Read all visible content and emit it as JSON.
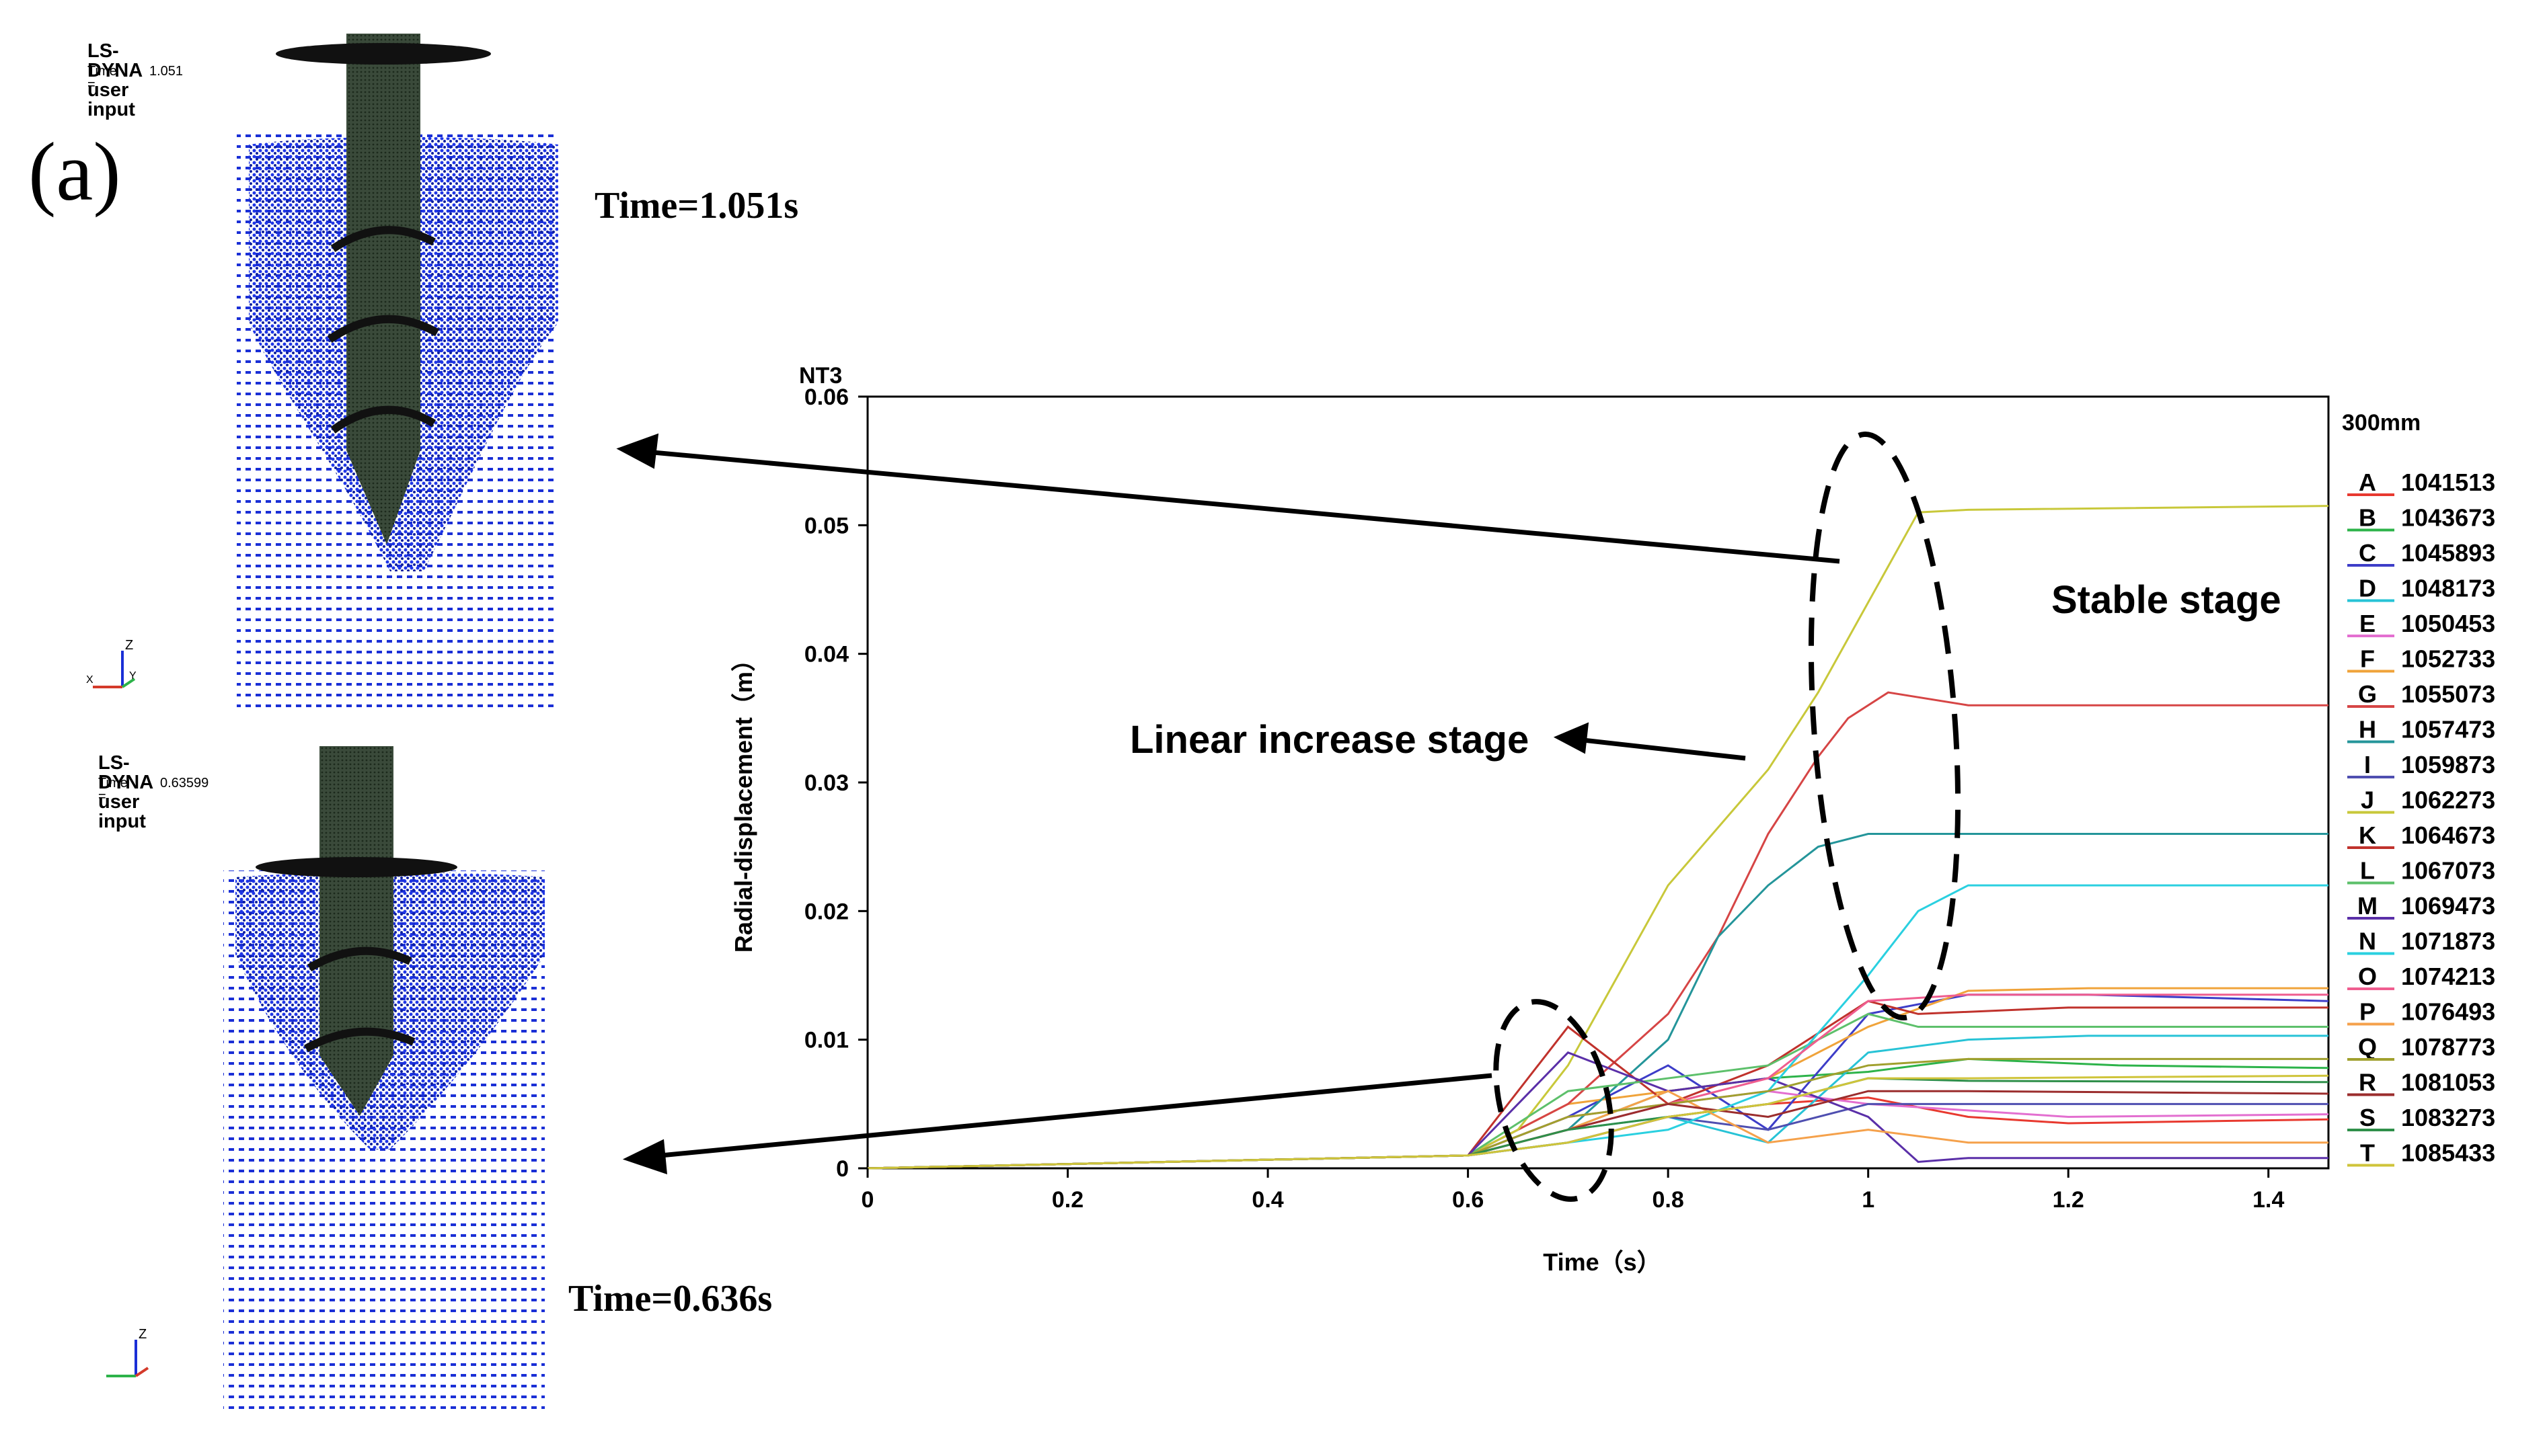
{
  "panel_label": "(a)",
  "simulations": [
    {
      "title": "LS-DYNA user input",
      "time_label": "Time =",
      "time_value": "1.051",
      "caption": "Time=1.051s"
    },
    {
      "title": "LS-DYNA user input",
      "time_label": "Time =",
      "time_value": "0.63599",
      "caption": "Time=0.636s"
    }
  ],
  "annotations": {
    "stable": "Stable stage",
    "linear": "Linear increase stage"
  },
  "colors": {
    "particles": "#1a2fd6",
    "pile": "#2f3f30",
    "arrow": "#000000"
  },
  "chart_data": {
    "type": "line",
    "title": "NT3",
    "subtitle": "300mm",
    "xlabel": "Time（s）",
    "ylabel": "Radial-displacement（m）",
    "xlim": [
      0,
      1.46
    ],
    "ylim": [
      0,
      0.06
    ],
    "xticks": [
      "0",
      "0.2",
      "0.4",
      "0.6",
      "0.8",
      "1",
      "1.2",
      "1.4"
    ],
    "yticks": [
      "0",
      "0.01",
      "0.02",
      "0.03",
      "0.04",
      "0.05",
      "0.06"
    ],
    "legend_position": "right",
    "series": [
      {
        "name": "A",
        "id": "1041513",
        "color": "#e8392f",
        "x": [
          0,
          0.6,
          0.7,
          0.8,
          0.9,
          1.0,
          1.1,
          1.2,
          1.46
        ],
        "y": [
          0,
          0.001,
          0.002,
          0.004,
          0.005,
          0.0055,
          0.004,
          0.0035,
          0.0038
        ]
      },
      {
        "name": "B",
        "id": "1043673",
        "color": "#2db34a",
        "x": [
          0,
          0.6,
          0.7,
          0.8,
          0.9,
          1.0,
          1.1,
          1.25,
          1.46
        ],
        "y": [
          0,
          0.001,
          0.003,
          0.006,
          0.007,
          0.0075,
          0.0085,
          0.008,
          0.0078
        ]
      },
      {
        "name": "C",
        "id": "1045893",
        "color": "#3d3dc8",
        "x": [
          0,
          0.6,
          0.7,
          0.8,
          0.9,
          1.0,
          1.1,
          1.22,
          1.46
        ],
        "y": [
          0,
          0.001,
          0.004,
          0.008,
          0.003,
          0.012,
          0.0135,
          0.0135,
          0.013
        ]
      },
      {
        "name": "D",
        "id": "1048173",
        "color": "#27c3d6",
        "x": [
          0,
          0.6,
          0.7,
          0.8,
          0.9,
          1.0,
          1.1,
          1.22,
          1.46
        ],
        "y": [
          0,
          0.001,
          0.003,
          0.004,
          0.002,
          0.009,
          0.01,
          0.0103,
          0.0103
        ]
      },
      {
        "name": "E",
        "id": "1050453",
        "color": "#e36fd0",
        "x": [
          0,
          0.6,
          0.7,
          0.8,
          0.9,
          1.0,
          1.1,
          1.2,
          1.46
        ],
        "y": [
          0,
          0.001,
          0.003,
          0.005,
          0.006,
          0.005,
          0.0045,
          0.004,
          0.0042
        ]
      },
      {
        "name": "F",
        "id": "1052733",
        "color": "#f0a33a",
        "x": [
          0,
          0.6,
          0.7,
          0.8,
          0.9,
          1.0,
          1.1,
          1.22,
          1.46
        ],
        "y": [
          0,
          0.001,
          0.005,
          0.006,
          0.007,
          0.011,
          0.0138,
          0.014,
          0.014
        ]
      },
      {
        "name": "G",
        "id": "1055073",
        "color": "#d64545",
        "x": [
          0,
          0.6,
          0.7,
          0.8,
          0.85,
          0.9,
          0.95,
          0.98,
          1.02,
          1.1,
          1.46
        ],
        "y": [
          0,
          0.001,
          0.005,
          0.012,
          0.018,
          0.026,
          0.032,
          0.035,
          0.037,
          0.036,
          0.036
        ]
      },
      {
        "name": "H",
        "id": "1057473",
        "color": "#24959a",
        "x": [
          0,
          0.6,
          0.7,
          0.8,
          0.85,
          0.9,
          0.95,
          1.0,
          1.1,
          1.46
        ],
        "y": [
          0,
          0.001,
          0.003,
          0.01,
          0.018,
          0.022,
          0.025,
          0.026,
          0.026,
          0.026
        ]
      },
      {
        "name": "I",
        "id": "1059873",
        "color": "#4f4fb0",
        "x": [
          0,
          0.6,
          0.7,
          0.8,
          0.9,
          1.0,
          1.1,
          1.46
        ],
        "y": [
          0,
          0.001,
          0.002,
          0.004,
          0.003,
          0.005,
          0.005,
          0.005
        ]
      },
      {
        "name": "J",
        "id": "1062273",
        "color": "#c8c83a",
        "x": [
          0,
          0.6,
          0.65,
          0.7,
          0.8,
          0.9,
          0.95,
          1.0,
          1.05,
          1.1,
          1.46
        ],
        "y": [
          0,
          0.001,
          0.003,
          0.008,
          0.022,
          0.031,
          0.037,
          0.044,
          0.051,
          0.0512,
          0.0515
        ]
      },
      {
        "name": "K",
        "id": "1064673",
        "color": "#c0322c",
        "x": [
          0,
          0.6,
          0.7,
          0.8,
          0.9,
          1.0,
          1.05,
          1.2,
          1.46
        ],
        "y": [
          0,
          0.001,
          0.011,
          0.005,
          0.008,
          0.013,
          0.012,
          0.0125,
          0.0125
        ]
      },
      {
        "name": "L",
        "id": "1067073",
        "color": "#5dc06b",
        "x": [
          0,
          0.6,
          0.7,
          0.8,
          0.9,
          1.0,
          1.05,
          1.2,
          1.46
        ],
        "y": [
          0,
          0.001,
          0.006,
          0.007,
          0.008,
          0.012,
          0.011,
          0.011,
          0.011
        ]
      },
      {
        "name": "M",
        "id": "1069473",
        "color": "#5a2fa8",
        "x": [
          0,
          0.6,
          0.7,
          0.8,
          0.9,
          1.0,
          1.05,
          1.1,
          1.46
        ],
        "y": [
          0,
          0.001,
          0.009,
          0.006,
          0.007,
          0.004,
          0.0005,
          0.0008,
          0.0008
        ]
      },
      {
        "name": "N",
        "id": "1071873",
        "color": "#2ad0e0",
        "x": [
          0,
          0.6,
          0.7,
          0.8,
          0.9,
          1.0,
          1.05,
          1.1,
          1.46
        ],
        "y": [
          0,
          0.001,
          0.002,
          0.003,
          0.006,
          0.015,
          0.02,
          0.022,
          0.022
        ]
      },
      {
        "name": "O",
        "id": "1074213",
        "color": "#ef5d8f",
        "x": [
          0,
          0.6,
          0.7,
          0.8,
          0.9,
          1.0,
          1.1,
          1.46
        ],
        "y": [
          0,
          0.001,
          0.004,
          0.005,
          0.007,
          0.013,
          0.0135,
          0.0135
        ]
      },
      {
        "name": "P",
        "id": "1076493",
        "color": "#f5a14b",
        "x": [
          0,
          0.6,
          0.7,
          0.8,
          0.9,
          1.0,
          1.1,
          1.46
        ],
        "y": [
          0,
          0.001,
          0.003,
          0.006,
          0.002,
          0.003,
          0.002,
          0.002
        ]
      },
      {
        "name": "Q",
        "id": "1078773",
        "color": "#a0a02e",
        "x": [
          0,
          0.6,
          0.7,
          0.8,
          0.9,
          1.0,
          1.1,
          1.46
        ],
        "y": [
          0,
          0.001,
          0.004,
          0.005,
          0.006,
          0.008,
          0.0085,
          0.0085
        ]
      },
      {
        "name": "R",
        "id": "1081053",
        "color": "#9b2d2d",
        "x": [
          0,
          0.6,
          0.7,
          0.8,
          0.9,
          1.0,
          1.1,
          1.46
        ],
        "y": [
          0,
          0.001,
          0.003,
          0.005,
          0.004,
          0.006,
          0.006,
          0.0058
        ]
      },
      {
        "name": "S",
        "id": "1083273",
        "color": "#2f8f4a",
        "x": [
          0,
          0.6,
          0.7,
          0.8,
          0.9,
          1.0,
          1.1,
          1.46
        ],
        "y": [
          0,
          0.001,
          0.003,
          0.004,
          0.005,
          0.007,
          0.0068,
          0.0067
        ]
      },
      {
        "name": "T",
        "id": "1085433",
        "color": "#cfc43a",
        "x": [
          0,
          0.6,
          0.7,
          0.8,
          0.9,
          1.0,
          1.1,
          1.46
        ],
        "y": [
          0,
          0.001,
          0.002,
          0.004,
          0.005,
          0.007,
          0.007,
          0.0072
        ]
      }
    ]
  }
}
